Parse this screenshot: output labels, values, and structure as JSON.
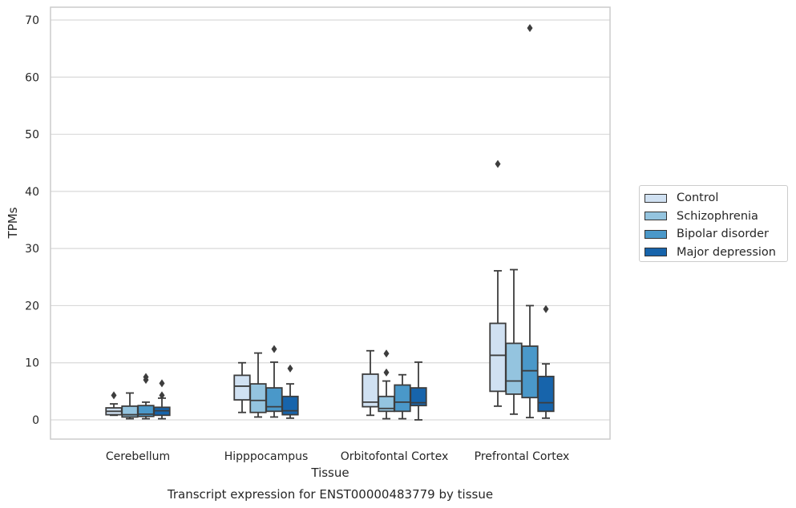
{
  "chart_data": {
    "type": "box",
    "title": "Transcript expression for ENST00000483779 by tissue",
    "xlabel": "Tissue",
    "ylabel": "TPMs",
    "ylim": [
      -3.3,
      72.2
    ],
    "yticks": [
      0,
      10,
      20,
      30,
      40,
      50,
      60,
      70
    ],
    "grid": true,
    "legend_position": "right",
    "categories": [
      "Cerebellum",
      "Hipppocampus",
      "Orbitofontal Cortex",
      "Prefrontal Cortex"
    ],
    "series": [
      {
        "name": "Control",
        "color": "#d0e1f2",
        "boxes": [
          {
            "whislo": 0.8,
            "q1": 0.9,
            "med": 1.5,
            "q3": 2.1,
            "whishi": 2.8,
            "fliers": [
              4.3
            ]
          },
          {
            "whislo": 1.3,
            "q1": 3.5,
            "med": 5.9,
            "q3": 7.8,
            "whishi": 10.0,
            "fliers": []
          },
          {
            "whislo": 0.8,
            "q1": 2.3,
            "med": 3.1,
            "q3": 8.0,
            "whishi": 12.1,
            "fliers": []
          },
          {
            "whislo": 2.4,
            "q1": 5.0,
            "med": 11.3,
            "q3": 16.9,
            "whishi": 26.1,
            "fliers": [
              44.8
            ]
          }
        ]
      },
      {
        "name": "Schizophrenia",
        "color": "#94c4df",
        "boxes": [
          {
            "whislo": 0.2,
            "q1": 0.5,
            "med": 0.9,
            "q3": 2.4,
            "whishi": 4.7,
            "fliers": []
          },
          {
            "whislo": 0.5,
            "q1": 1.3,
            "med": 3.4,
            "q3": 6.3,
            "whishi": 11.7,
            "fliers": []
          },
          {
            "whislo": 0.2,
            "q1": 1.5,
            "med": 2.0,
            "q3": 4.1,
            "whishi": 6.8,
            "fliers": [
              8.3,
              11.6
            ]
          },
          {
            "whislo": 1.0,
            "q1": 4.5,
            "med": 6.8,
            "q3": 13.4,
            "whishi": 26.3,
            "fliers": []
          }
        ]
      },
      {
        "name": "Bipolar disorder",
        "color": "#4a98c9",
        "boxes": [
          {
            "whislo": 0.2,
            "q1": 0.6,
            "med": 1.0,
            "q3": 2.5,
            "whishi": 3.1,
            "fliers": [
              7.0,
              7.5
            ]
          },
          {
            "whislo": 0.5,
            "q1": 1.5,
            "med": 2.3,
            "q3": 5.6,
            "whishi": 10.1,
            "fliers": [
              12.4
            ]
          },
          {
            "whislo": 0.2,
            "q1": 1.5,
            "med": 3.1,
            "q3": 6.1,
            "whishi": 7.9,
            "fliers": []
          },
          {
            "whislo": 0.4,
            "q1": 3.9,
            "med": 8.6,
            "q3": 12.9,
            "whishi": 20.0,
            "fliers": [
              68.6
            ]
          }
        ]
      },
      {
        "name": "Major depression",
        "color": "#1764ab",
        "boxes": [
          {
            "whislo": 0.2,
            "q1": 0.8,
            "med": 1.6,
            "q3": 2.2,
            "whishi": 3.8,
            "fliers": [
              4.3,
              6.4
            ]
          },
          {
            "whislo": 0.3,
            "q1": 0.9,
            "med": 1.6,
            "q3": 4.1,
            "whishi": 6.3,
            "fliers": [
              9.0
            ]
          },
          {
            "whislo": 0.0,
            "q1": 2.5,
            "med": 3.0,
            "q3": 5.6,
            "whishi": 10.1,
            "fliers": []
          },
          {
            "whislo": 0.3,
            "q1": 1.5,
            "med": 3.0,
            "q3": 7.6,
            "whishi": 9.8,
            "fliers": [
              19.4
            ]
          }
        ]
      }
    ]
  }
}
